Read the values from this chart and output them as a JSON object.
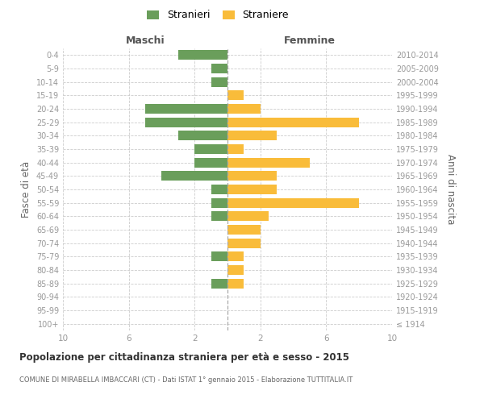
{
  "age_groups": [
    "100+",
    "95-99",
    "90-94",
    "85-89",
    "80-84",
    "75-79",
    "70-74",
    "65-69",
    "60-64",
    "55-59",
    "50-54",
    "45-49",
    "40-44",
    "35-39",
    "30-34",
    "25-29",
    "20-24",
    "15-19",
    "10-14",
    "5-9",
    "0-4"
  ],
  "birth_years": [
    "≤ 1914",
    "1915-1919",
    "1920-1924",
    "1925-1929",
    "1930-1934",
    "1935-1939",
    "1940-1944",
    "1945-1949",
    "1950-1954",
    "1955-1959",
    "1960-1964",
    "1965-1969",
    "1970-1974",
    "1975-1979",
    "1980-1984",
    "1985-1989",
    "1990-1994",
    "1995-1999",
    "2000-2004",
    "2005-2009",
    "2010-2014"
  ],
  "males": [
    0,
    0,
    0,
    1,
    0,
    1,
    0,
    0,
    1,
    1,
    1,
    4,
    2,
    2,
    3,
    5,
    5,
    0,
    1,
    1,
    3
  ],
  "females": [
    0,
    0,
    0,
    1,
    1,
    1,
    2,
    2,
    2.5,
    8,
    3,
    3,
    5,
    1,
    3,
    8,
    2,
    1,
    0,
    0,
    0
  ],
  "male_color": "#6a9e5b",
  "female_color": "#f9bc3a",
  "background_color": "#ffffff",
  "grid_color": "#cccccc",
  "title": "Popolazione per cittadinanza straniera per età e sesso - 2015",
  "subtitle": "COMUNE DI MIRABELLA IMBACCARI (CT) - Dati ISTAT 1° gennaio 2015 - Elaborazione TUTTITALIA.IT",
  "xlabel_left": "Maschi",
  "xlabel_right": "Femmine",
  "ylabel_left": "Fasce di età",
  "ylabel_right": "Anni di nascita",
  "xlim": 10,
  "legend_male": "Stranieri",
  "legend_female": "Straniere"
}
